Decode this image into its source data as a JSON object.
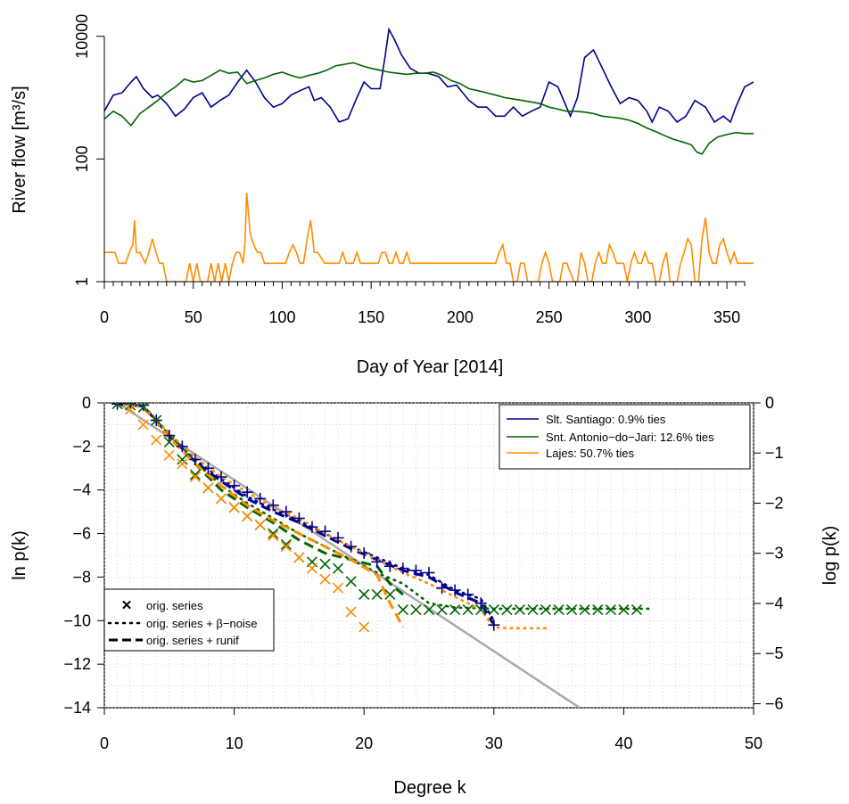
{
  "colors": {
    "santiago": "#00008B",
    "jari": "#006400",
    "lajes": "#FF8C00",
    "reference": "#AAAAAA"
  },
  "chart_data": [
    {
      "type": "line",
      "ylabel": "River flow [m³/s]",
      "xlabel": "Day of Year [2014]",
      "yscale": "log",
      "xlim": [
        0,
        365
      ],
      "ylim": [
        1,
        20000
      ],
      "xticks": [
        "0",
        "50",
        "100",
        "150",
        "200",
        "250",
        "300",
        "350"
      ],
      "yticks": [
        "1",
        "100",
        "10000"
      ],
      "series": [
        {
          "key": "santiago",
          "x": [
            0,
            5,
            10,
            15,
            18,
            22,
            27,
            30,
            35,
            40,
            45,
            50,
            55,
            60,
            65,
            70,
            75,
            80,
            85,
            90,
            95,
            100,
            105,
            110,
            115,
            118,
            122,
            127,
            132,
            137,
            142,
            146,
            150,
            155,
            158,
            160,
            163,
            167,
            172,
            177,
            182,
            188,
            193,
            198,
            205,
            210,
            215,
            220,
            225,
            230,
            235,
            240,
            245,
            250,
            255,
            262,
            266,
            270,
            275,
            280,
            285,
            290,
            295,
            300,
            305,
            308,
            312,
            317,
            322,
            327,
            332,
            338,
            343,
            348,
            352,
            355,
            360,
            365
          ],
          "y": [
            600,
            1100,
            1200,
            1800,
            2200,
            1400,
            1000,
            1100,
            800,
            500,
            650,
            1000,
            1200,
            700,
            900,
            1100,
            1800,
            2800,
            1800,
            1000,
            700,
            800,
            1100,
            1300,
            1500,
            900,
            1000,
            700,
            400,
            450,
            1000,
            1800,
            1400,
            1400,
            5000,
            13000,
            9000,
            5000,
            3000,
            2500,
            2500,
            2200,
            1500,
            1600,
            900,
            700,
            700,
            500,
            500,
            700,
            500,
            600,
            700,
            1800,
            1500,
            500,
            1000,
            4500,
            6000,
            3000,
            1500,
            800,
            1000,
            900,
            600,
            400,
            700,
            600,
            400,
            500,
            900,
            700,
            400,
            500,
            400,
            700,
            1500,
            1800
          ]
        },
        {
          "key": "jari",
          "x": [
            0,
            5,
            10,
            15,
            20,
            25,
            30,
            35,
            40,
            45,
            50,
            55,
            60,
            65,
            70,
            75,
            80,
            85,
            90,
            95,
            100,
            105,
            110,
            115,
            120,
            125,
            130,
            135,
            140,
            145,
            150,
            155,
            160,
            165,
            170,
            175,
            180,
            185,
            190,
            195,
            200,
            205,
            210,
            215,
            220,
            225,
            230,
            235,
            240,
            245,
            250,
            255,
            260,
            265,
            270,
            275,
            280,
            285,
            290,
            295,
            300,
            305,
            310,
            315,
            320,
            325,
            330,
            333,
            336,
            340,
            345,
            350,
            355,
            360,
            365
          ],
          "y": [
            450,
            600,
            500,
            350,
            550,
            700,
            900,
            1200,
            1500,
            2000,
            1800,
            1900,
            2300,
            2800,
            2500,
            2600,
            1700,
            1900,
            2100,
            2400,
            2600,
            2300,
            2100,
            2300,
            2500,
            2800,
            3300,
            3500,
            3700,
            3300,
            3000,
            2800,
            2600,
            2500,
            2400,
            2500,
            2500,
            2600,
            2300,
            1900,
            1700,
            1400,
            1300,
            1200,
            1100,
            1000,
            950,
            900,
            850,
            800,
            700,
            650,
            600,
            600,
            580,
            550,
            500,
            480,
            460,
            430,
            380,
            320,
            280,
            240,
            210,
            190,
            170,
            130,
            120,
            180,
            230,
            250,
            270,
            260,
            260
          ]
        },
        {
          "key": "lajes",
          "x": [
            0,
            6,
            8,
            12,
            14,
            16,
            17,
            18,
            20,
            23,
            25,
            27,
            29,
            31,
            33,
            35,
            37,
            40,
            42,
            44,
            46,
            48,
            50,
            52,
            54,
            56,
            58,
            60,
            62,
            64,
            66,
            68,
            70,
            72,
            74,
            76,
            78,
            79,
            80,
            82,
            84,
            86,
            88,
            90,
            92,
            94,
            96,
            100,
            102,
            104,
            106,
            108,
            110,
            112,
            114,
            116,
            118,
            120,
            124,
            126,
            128,
            130,
            132,
            134,
            136,
            138,
            140,
            142,
            144,
            146,
            148,
            150,
            152,
            154,
            156,
            158,
            160,
            162,
            164,
            166,
            168,
            170,
            172,
            174,
            176,
            220,
            222,
            224,
            226,
            228,
            230,
            232,
            234,
            236,
            238,
            240,
            244,
            246,
            248,
            250,
            252,
            254,
            256,
            258,
            260,
            264,
            266,
            268,
            270,
            272,
            274,
            276,
            278,
            280,
            282,
            284,
            286,
            288,
            290,
            292,
            294,
            296,
            298,
            300,
            302,
            304,
            306,
            308,
            310,
            312,
            314,
            316,
            318,
            320,
            322,
            324,
            326,
            328,
            330,
            332,
            334,
            336,
            338,
            340,
            342,
            344,
            346,
            348,
            350,
            352,
            354,
            356,
            358,
            360,
            362,
            365
          ],
          "y": [
            3,
            3,
            2,
            2,
            3,
            4,
            10,
            3,
            3,
            2,
            3,
            5,
            3,
            2,
            2,
            1,
            1,
            1,
            1,
            1,
            1,
            2,
            1,
            2,
            1,
            1,
            1,
            2,
            1,
            2,
            1,
            2,
            1,
            2,
            3,
            3,
            2,
            4,
            28,
            6,
            4,
            3,
            3,
            2,
            2,
            2,
            2,
            2,
            2,
            3,
            4,
            3,
            2,
            2,
            5,
            10,
            3,
            3,
            2,
            2,
            2,
            2,
            2,
            3,
            2,
            2,
            2,
            3,
            2,
            2,
            2,
            2,
            2,
            2,
            3,
            3,
            2,
            2,
            3,
            2,
            2,
            3,
            2,
            2,
            2,
            2,
            3,
            4,
            2,
            2,
            1,
            1,
            2,
            2,
            1,
            1,
            1,
            2,
            3,
            2,
            1,
            1,
            1,
            2,
            2,
            1,
            1,
            3,
            2,
            1,
            1,
            2,
            3,
            2,
            2,
            4,
            3,
            2,
            2,
            2,
            1,
            2,
            3,
            2,
            2,
            3,
            2,
            2,
            1,
            1,
            2,
            3,
            1,
            1,
            1,
            2,
            3,
            5,
            4,
            1,
            1,
            5,
            11,
            3,
            2,
            2,
            4,
            5,
            3,
            2,
            3,
            2,
            2,
            2,
            2,
            2
          ]
        }
      ]
    },
    {
      "type": "scatter",
      "xlabel": "Degree k",
      "ylabel": "ln p(k)",
      "ylabel_right": "log p(k)",
      "xlim": [
        0,
        50
      ],
      "ylim": [
        -14,
        0
      ],
      "xticks": [
        "0",
        "10",
        "20",
        "30",
        "40",
        "50"
      ],
      "yticks": [
        "0",
        "−2",
        "−4",
        "−6",
        "−8",
        "−10",
        "−12",
        "−14"
      ],
      "yticks_right": [
        "0",
        "−1",
        "−2",
        "−3",
        "−4",
        "−5",
        "−6"
      ],
      "grid": true,
      "legend_series": [
        {
          "key": "santiago",
          "label": "Slt. Santiago: 0.9% ties"
        },
        {
          "key": "jari",
          "label": "Snt. Antonio−do−Jari: 12.6% ties"
        },
        {
          "key": "lajes",
          "label": "Lajes: 50.7% ties"
        }
      ],
      "legend_styles": [
        {
          "key": "orig",
          "label": "orig. series"
        },
        {
          "key": "beta",
          "label": "orig. series + β−noise"
        },
        {
          "key": "runif",
          "label": "orig. series + runif"
        }
      ],
      "reference_line": {
        "x": [
          1,
          36.6
        ],
        "y": [
          0,
          -14
        ]
      },
      "series": [
        {
          "key": "santiago",
          "style": "orig",
          "x": [
            1,
            2,
            3,
            4,
            5,
            6,
            7,
            8,
            9,
            10,
            11,
            12,
            13,
            14,
            15,
            16,
            17,
            18,
            19,
            20,
            21,
            22,
            23,
            24,
            25,
            26,
            27,
            28,
            29,
            30
          ],
          "y": [
            -0.05,
            -0.05,
            -0.1,
            -0.8,
            -1.5,
            -2.0,
            -2.6,
            -3.0,
            -3.4,
            -3.8,
            -4.1,
            -4.4,
            -4.7,
            -5.0,
            -5.3,
            -5.7,
            -5.9,
            -6.2,
            -6.6,
            -6.9,
            -7.3,
            -7.5,
            -7.6,
            -7.7,
            -7.8,
            -8.5,
            -8.6,
            -8.8,
            -9.2,
            -10.2
          ]
        },
        {
          "key": "santiago",
          "style": "beta",
          "x": [
            1,
            3,
            5,
            7,
            9,
            11,
            13,
            15,
            17,
            19,
            21,
            23,
            25,
            27,
            29,
            30
          ],
          "y": [
            -0.05,
            -0.15,
            -1.4,
            -2.6,
            -3.5,
            -4.3,
            -4.9,
            -5.4,
            -6.0,
            -6.6,
            -7.1,
            -7.6,
            -7.9,
            -8.6,
            -9.0,
            -10.0
          ]
        },
        {
          "key": "santiago",
          "style": "runif",
          "x": [
            1,
            3,
            5,
            7,
            9,
            11,
            13,
            15,
            17,
            19,
            21,
            23,
            25,
            27,
            29,
            30
          ],
          "y": [
            -0.05,
            -0.15,
            -1.5,
            -2.7,
            -3.6,
            -4.4,
            -5.0,
            -5.5,
            -6.1,
            -6.7,
            -7.2,
            -7.7,
            -8.0,
            -8.7,
            -9.2,
            -10.2
          ]
        },
        {
          "key": "jari",
          "style": "orig",
          "x": [
            1,
            2,
            3,
            4,
            5,
            6,
            7,
            8,
            9,
            10,
            11,
            12,
            13,
            14,
            15,
            16,
            17,
            18,
            19,
            20,
            21,
            22,
            23,
            24,
            25,
            26,
            27,
            28,
            29,
            30,
            31,
            32,
            33,
            34,
            35,
            36,
            37,
            38,
            39,
            40,
            41
          ],
          "y": [
            -0.05,
            -0.1,
            -0.2,
            -0.8,
            -1.8,
            -2.6,
            -3.3,
            -3.9,
            -4.4,
            -4.8,
            -5.2,
            -5.6,
            -6.0,
            -6.5,
            -7.1,
            -7.3,
            -7.4,
            -7.6,
            -8.2,
            -8.8,
            -8.8,
            -8.8,
            -9.5,
            -9.5,
            -9.5,
            -9.5,
            -9.5,
            -9.5,
            -9.5,
            -9.5,
            -9.5,
            -9.5,
            -9.5,
            -9.5,
            -9.5,
            -9.5,
            -9.5,
            -9.5,
            -9.5,
            -9.5,
            -9.5
          ]
        },
        {
          "key": "jari",
          "style": "beta",
          "x": [
            3,
            5,
            7,
            9,
            11,
            13,
            15,
            17,
            19,
            21,
            23,
            25,
            27,
            30,
            33,
            36,
            39,
            42
          ],
          "y": [
            -0.2,
            -1.4,
            -2.7,
            -3.8,
            -4.6,
            -5.3,
            -6.0,
            -6.6,
            -7.2,
            -7.8,
            -8.3,
            -9.2,
            -9.4,
            -9.45,
            -9.45,
            -9.45,
            -9.45,
            -9.45
          ]
        },
        {
          "key": "jari",
          "style": "runif",
          "x": [
            3,
            5,
            7,
            9,
            11,
            13,
            15,
            17,
            19,
            21,
            22,
            23
          ],
          "y": [
            -0.2,
            -1.5,
            -2.8,
            -4.0,
            -4.8,
            -5.5,
            -6.3,
            -6.9,
            -7.2,
            -7.5,
            -8.3,
            -8.8
          ]
        },
        {
          "key": "lajes",
          "style": "orig",
          "x": [
            2,
            3,
            4,
            5,
            6,
            7,
            8,
            9,
            10,
            11,
            12,
            13,
            14,
            15,
            16,
            17,
            18,
            19,
            20
          ],
          "y": [
            -0.3,
            -1.0,
            -1.7,
            -2.4,
            -2.8,
            -3.4,
            -3.9,
            -4.4,
            -4.8,
            -5.2,
            -5.6,
            -6.1,
            -6.6,
            -7.1,
            -7.6,
            -8.1,
            -8.5,
            -9.6,
            -10.3
          ]
        },
        {
          "key": "lajes",
          "style": "beta",
          "x": [
            1,
            3,
            5,
            7,
            9,
            11,
            13,
            15,
            17,
            19,
            21,
            23,
            25,
            27,
            29,
            30,
            31,
            34
          ],
          "y": [
            -0.05,
            -0.2,
            -1.4,
            -2.5,
            -3.4,
            -4.1,
            -4.8,
            -5.3,
            -6.0,
            -6.6,
            -7.2,
            -7.8,
            -8.3,
            -8.9,
            -9.5,
            -10.3,
            -10.35,
            -10.35
          ]
        },
        {
          "key": "lajes",
          "style": "runif",
          "x": [
            3,
            5,
            7,
            9,
            11,
            13,
            15,
            17,
            19,
            21,
            22,
            23
          ],
          "y": [
            -0.2,
            -1.6,
            -2.8,
            -3.8,
            -4.7,
            -5.4,
            -6.0,
            -6.6,
            -7.2,
            -7.9,
            -9.2,
            -10.3
          ]
        }
      ]
    }
  ]
}
